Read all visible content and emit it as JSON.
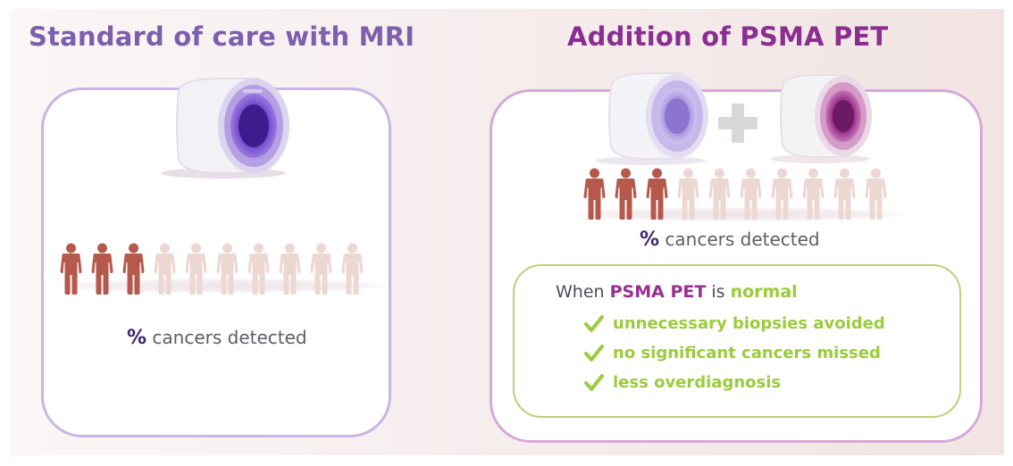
{
  "left": {
    "title": "Standard of care with MRI",
    "detected_label": "cancers detected",
    "percent_symbol": "%",
    "people": {
      "total": 10,
      "highlighted": 3
    },
    "scanner": "mri-scanner-icon"
  },
  "right": {
    "title": "Addition of PSMA PET",
    "detected_label": "cancers detected",
    "percent_symbol": "%",
    "people": {
      "total": 10,
      "highlighted": 3
    },
    "scanners": [
      "mri-scanner-icon",
      "plus-icon",
      "pet-scanner-icon"
    ],
    "info": {
      "prefix": "When",
      "psma": "PSMA PET",
      "mid": "is",
      "normal": "normal",
      "items": [
        "unnecessary biopsies avoided",
        "no significant cancers missed",
        "less overdiagnosis"
      ]
    }
  },
  "colors": {
    "left_title": "#7d5fad",
    "right_title": "#8a2f91",
    "person_highlight": "#b6594d",
    "person_dim": "#ecd7d2",
    "check_green": "#9acb3c",
    "mri_purple": "#7b4fcf",
    "pet_magenta": "#9a2b8a"
  }
}
